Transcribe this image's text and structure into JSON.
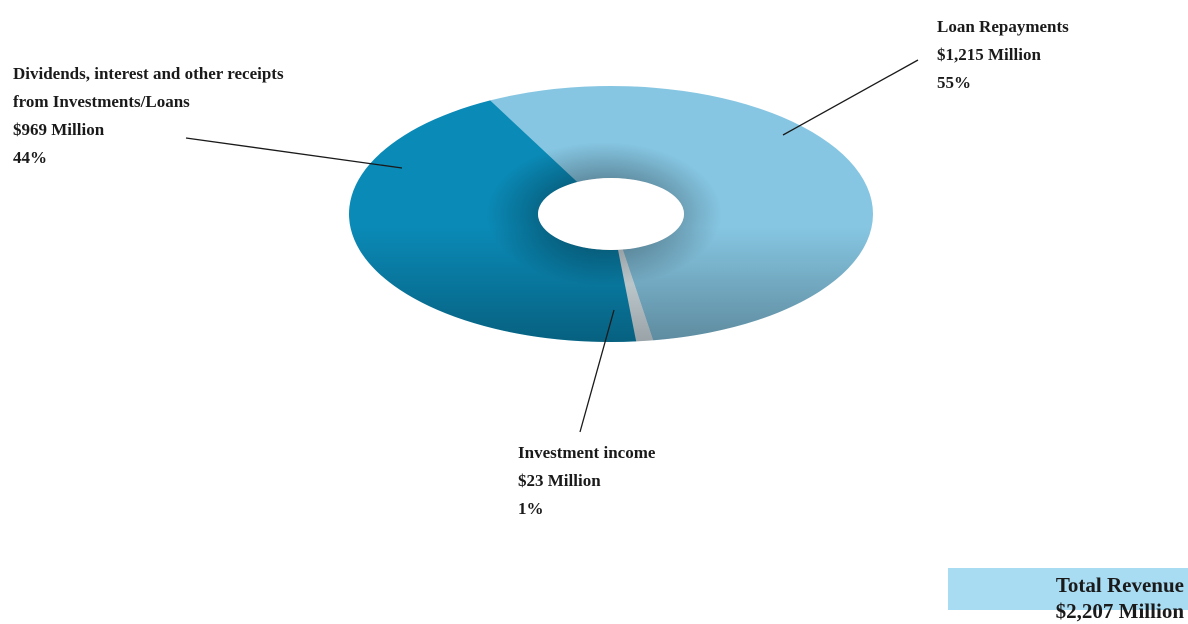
{
  "chart_data": {
    "type": "pie",
    "style": "donut-3d",
    "slices": [
      {
        "name_lines": [
          "Loan Repayments"
        ],
        "amount": "$1,215 Million",
        "percent_label": "55%",
        "value": 1215,
        "color": "#86c6e2"
      },
      {
        "name_lines": [
          "Investment income"
        ],
        "amount": "$23 Million",
        "percent_label": "1%",
        "value": 23,
        "color": "#dbe8ee"
      },
      {
        "name_lines": [
          "Dividends, interest and other receipts",
          "from Investments/Loans"
        ],
        "amount": "$969 Million",
        "percent_label": "44%",
        "value": 969,
        "color": "#0a8ab7"
      }
    ],
    "total": {
      "title": "Total Revenue",
      "amount": "$2,207 Million",
      "value": 2207,
      "box_color": "#a8dcf3"
    }
  }
}
